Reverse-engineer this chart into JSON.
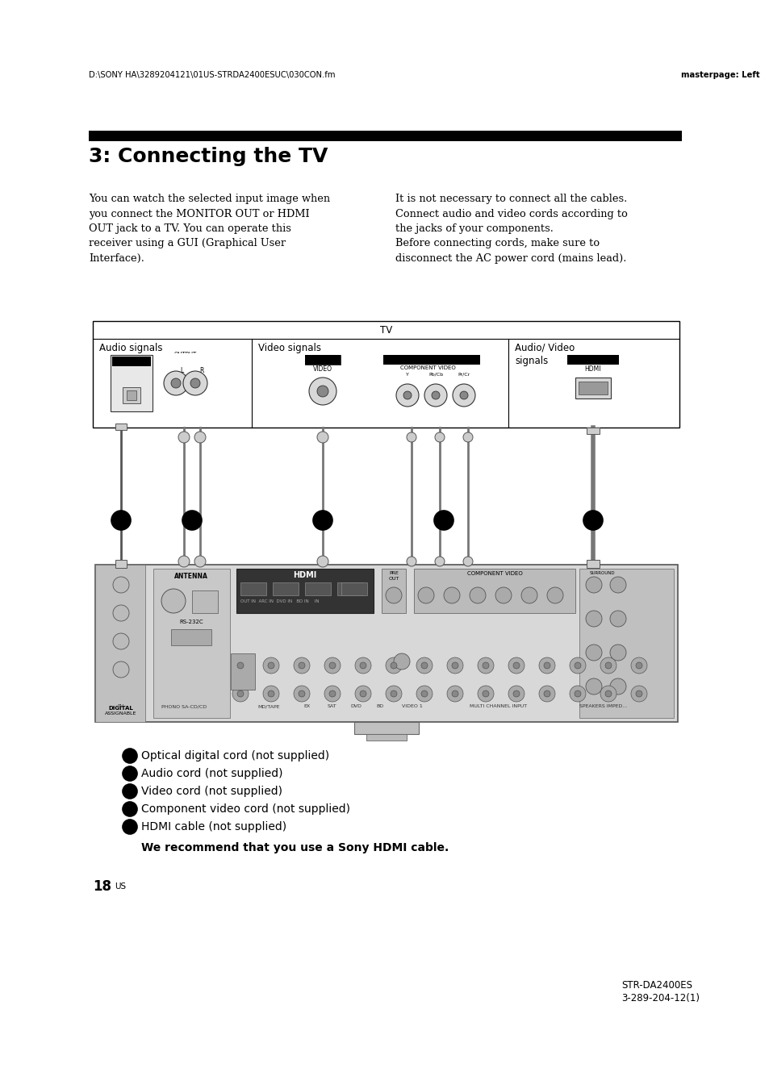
{
  "header_left": "D:\\SONY HA\\3289204121\\01US-STRDA2400ESUC\\030CON.fm",
  "header_right": "masterpage: Left",
  "section_title": "3: Connecting the TV",
  "para1_left": "You can watch the selected input image when\nyou connect the MONITOR OUT or HDMI\nOUT jack to a TV. You can operate this\nreceiver using a GUI (Graphical User\nInterface).",
  "para1_right": "It is not necessary to connect all the cables.\nConnect audio and video cords according to\nthe jacks of your components.\nBefore connecting cords, make sure to\ndisconnect the AC power cord (mains lead).",
  "tv_label": "TV",
  "col1_label": "Audio signals",
  "col2_label": "Video signals",
  "col3_label": "Audio/ Video\nsignals",
  "legend_A": "Optical digital cord (not supplied)",
  "legend_B": "Audio cord (not supplied)",
  "legend_C": "Video cord (not supplied)",
  "legend_D": "Component video cord (not supplied)",
  "legend_E": "HDMI cable (not supplied)",
  "legend_note": "We recommend that you use a Sony HDMI cable.",
  "page_num": "18",
  "page_suffix": "US",
  "footer_model": "STR-DA2400ES",
  "footer_code": "3-289-204-12(1)",
  "bg_color": "#ffffff"
}
